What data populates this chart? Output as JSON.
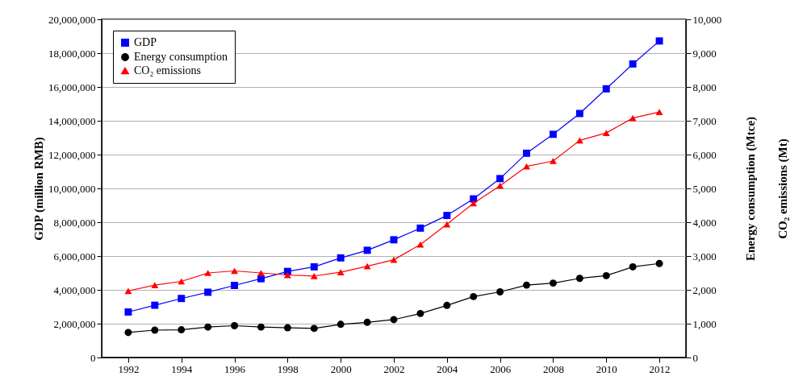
{
  "chart_data": {
    "type": "line",
    "ylabel": "GDP (million RMB)",
    "y2label": "Energy consumption (Mtce)\nCO₂ emissions (Mt)",
    "x": [
      1992,
      1993,
      1994,
      1995,
      1996,
      1997,
      1998,
      1999,
      2000,
      2001,
      2002,
      2003,
      2004,
      2005,
      2006,
      2007,
      2008,
      2009,
      2010,
      2011,
      2012
    ],
    "xlim": [
      1991,
      2013
    ],
    "xticks": [
      1992,
      1994,
      1996,
      1998,
      2000,
      2002,
      2004,
      2006,
      2008,
      2010,
      2012
    ],
    "ylim": [
      0,
      20000000
    ],
    "yticks": [
      0,
      {
        "value": 2000000,
        "label": "2,000,000"
      },
      {
        "value": 4000000,
        "label": "4,000,000"
      },
      {
        "value": 6000000,
        "label": "6,000,000"
      },
      {
        "value": 8000000,
        "label": "8,000,000"
      },
      {
        "value": 10000000,
        "label": "10,000,000"
      },
      {
        "value": 12000000,
        "label": "12,000,000"
      },
      {
        "value": 14000000,
        "label": "14,000,000"
      },
      {
        "value": 16000000,
        "label": "16,000,000"
      },
      {
        "value": 18000000,
        "label": "18,000,000"
      },
      {
        "value": 20000000,
        "label": "20,000,000"
      }
    ],
    "y2lim": [
      0,
      10000
    ],
    "y2ticks": [
      0,
      {
        "value": 1000,
        "label": "1,000"
      },
      {
        "value": 2000,
        "label": "2,000"
      },
      {
        "value": 3000,
        "label": "3,000"
      },
      {
        "value": 4000,
        "label": "4,000"
      },
      {
        "value": 5000,
        "label": "5,000"
      },
      {
        "value": 6000,
        "label": "6,000"
      },
      {
        "value": 7000,
        "label": "7,000"
      },
      {
        "value": 8000,
        "label": "8,000"
      },
      {
        "value": 9000,
        "label": "9,000"
      },
      {
        "value": 10000,
        "label": "10,000"
      }
    ],
    "grid": "y",
    "legend": "top left",
    "line_style": "solid",
    "series": [
      {
        "name": "GDP",
        "color": "#0000ff",
        "marker": "square",
        "values": [
          2690000,
          3090000,
          3490000,
          3860000,
          4260000,
          4660000,
          5090000,
          5360000,
          5890000,
          6340000,
          6960000,
          7650000,
          8400000,
          9380000,
          10580000,
          12080000,
          13200000,
          14430000,
          15890000,
          17360000,
          18720000
        ]
      },
      {
        "name": "Energy consumption",
        "color": "#000000",
        "marker": "circle",
        "axis": "y2",
        "values": [
          740,
          810,
          820,
          900,
          940,
          900,
          880,
          860,
          980,
          1040,
          1120,
          1300,
          1540,
          1800,
          1940,
          2140,
          2200,
          2340,
          2420,
          2680,
          2780
        ]
      },
      {
        "name": "CO₂ emissions",
        "color": "#ff0000",
        "marker": "triangle",
        "axis": "y2",
        "values": [
          1970,
          2140,
          2250,
          2500,
          2560,
          2500,
          2440,
          2410,
          2520,
          2700,
          2890,
          3340,
          3940,
          4560,
          5080,
          5650,
          5810,
          6420,
          6640,
          7080,
          7260
        ]
      }
    ]
  }
}
